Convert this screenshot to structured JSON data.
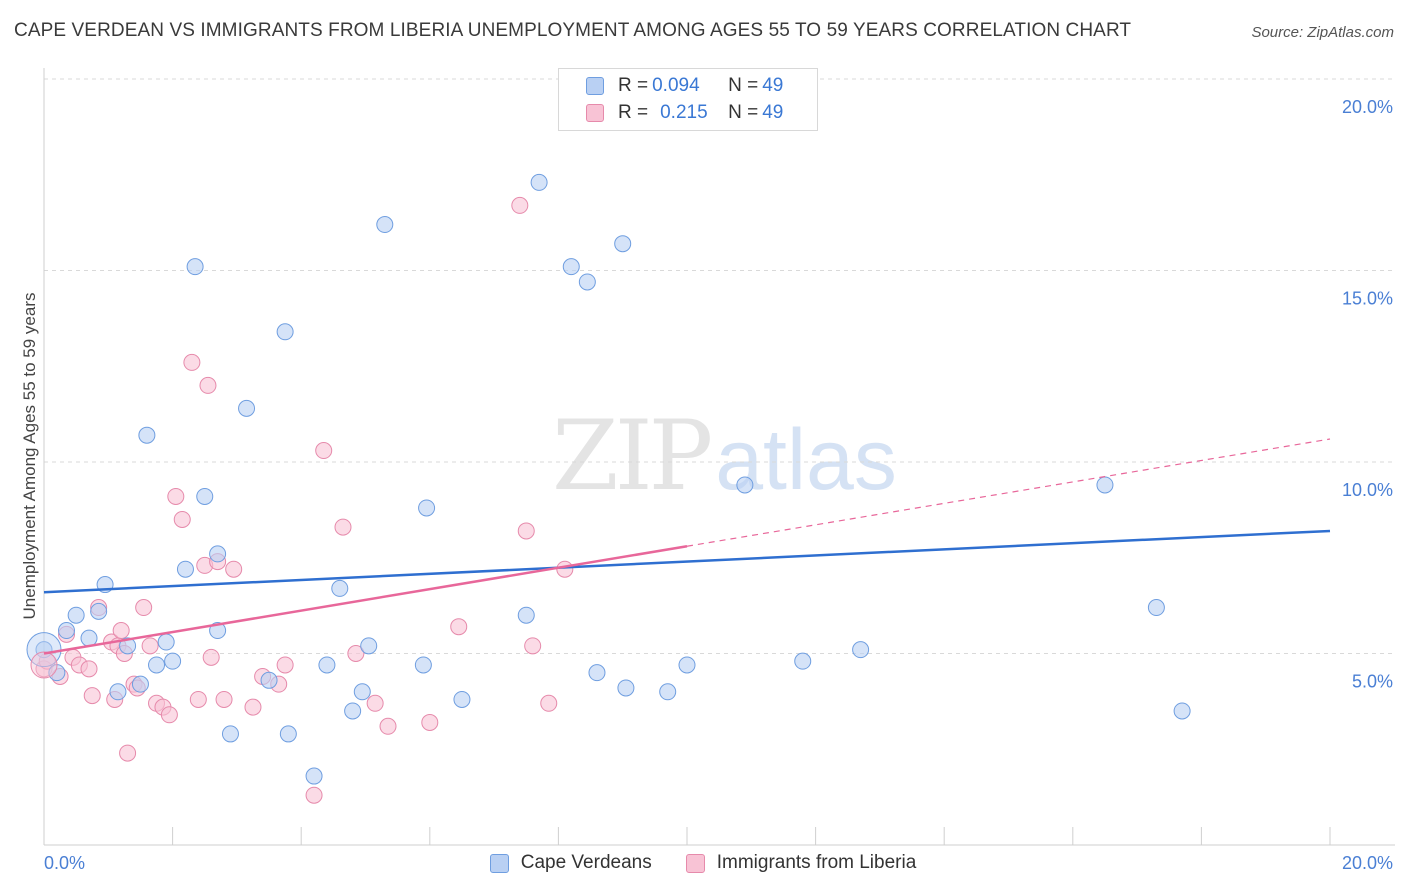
{
  "header": {
    "title": "CAPE VERDEAN VS IMMIGRANTS FROM LIBERIA UNEMPLOYMENT AMONG AGES 55 TO 59 YEARS CORRELATION CHART",
    "source": "Source: ZipAtlas.com"
  },
  "watermark": {
    "zip": "ZIP",
    "atlas": "atlas"
  },
  "legend_top": {
    "rows": [
      {
        "r_label": "R = ",
        "r_value": "0.094",
        "n_label": "N = ",
        "n_value": "49"
      },
      {
        "r_label": "R = ",
        "r_value": "0.215",
        "n_label": "N = ",
        "n_value": "49"
      }
    ]
  },
  "legend_bottom": {
    "items": [
      {
        "label": "Cape Verdeans"
      },
      {
        "label": "Immigrants from Liberia"
      }
    ]
  },
  "colors": {
    "blue_fill": "#b9d0f3",
    "blue_stroke": "#6f9ee0",
    "blue_line": "#2f6fd0",
    "pink_fill": "#f8c3d5",
    "pink_stroke": "#e68aab",
    "pink_line": "#e8679a",
    "grid": "#d9d9d9",
    "tick_label": "#4a7fd4"
  },
  "chart_data": {
    "type": "scatter",
    "title": "CAPE VERDEAN VS IMMIGRANTS FROM LIBERIA UNEMPLOYMENT AMONG AGES 55 TO 59 YEARS CORRELATION CHART",
    "xlabel": "",
    "ylabel": "Unemployment Among Ages 55 to 59 years",
    "xlim": [
      0,
      20
    ],
    "ylim": [
      0,
      20
    ],
    "x_tick_labels": [
      "0.0%",
      "20.0%"
    ],
    "y_ticks": [
      5,
      10,
      15,
      20
    ],
    "y_tick_labels": [
      "5.0%",
      "10.0%",
      "15.0%",
      "20.0%"
    ],
    "grid": true,
    "legend_position": "top-center",
    "series": [
      {
        "name": "Cape Verdeans",
        "r": 0.094,
        "n": 49,
        "trend": {
          "x": [
            0,
            20
          ],
          "y": [
            6.6,
            8.2
          ]
        },
        "points": [
          [
            0.0,
            5.1
          ],
          [
            0.2,
            4.5
          ],
          [
            0.35,
            5.6
          ],
          [
            0.5,
            6.0
          ],
          [
            0.7,
            5.4
          ],
          [
            0.85,
            6.1
          ],
          [
            0.95,
            6.8
          ],
          [
            1.15,
            4.0
          ],
          [
            1.3,
            5.2
          ],
          [
            1.5,
            4.2
          ],
          [
            1.6,
            10.7
          ],
          [
            1.75,
            4.7
          ],
          [
            1.9,
            5.3
          ],
          [
            2.0,
            4.8
          ],
          [
            2.2,
            7.2
          ],
          [
            2.35,
            15.1
          ],
          [
            2.5,
            9.1
          ],
          [
            2.7,
            7.6
          ],
          [
            2.7,
            5.6
          ],
          [
            2.9,
            2.9
          ],
          [
            3.15,
            11.4
          ],
          [
            3.5,
            4.3
          ],
          [
            3.75,
            13.4
          ],
          [
            3.8,
            2.9
          ],
          [
            4.2,
            1.8
          ],
          [
            4.4,
            4.7
          ],
          [
            4.6,
            6.7
          ],
          [
            4.8,
            3.5
          ],
          [
            4.95,
            4.0
          ],
          [
            5.05,
            5.2
          ],
          [
            5.3,
            16.2
          ],
          [
            5.9,
            4.7
          ],
          [
            5.95,
            8.8
          ],
          [
            6.5,
            3.8
          ],
          [
            7.5,
            6.0
          ],
          [
            7.7,
            17.3
          ],
          [
            8.2,
            15.1
          ],
          [
            8.45,
            14.7
          ],
          [
            8.6,
            4.5
          ],
          [
            9.0,
            15.7
          ],
          [
            9.05,
            4.1
          ],
          [
            9.7,
            4.0
          ],
          [
            10.0,
            4.7
          ],
          [
            10.9,
            9.4
          ],
          [
            11.8,
            4.8
          ],
          [
            12.7,
            5.1
          ],
          [
            16.5,
            9.4
          ],
          [
            17.3,
            6.2
          ],
          [
            17.7,
            3.5
          ]
        ]
      },
      {
        "name": "Immigrants from Liberia",
        "r": 0.215,
        "n": 49,
        "trend": {
          "x": [
            0,
            10
          ],
          "y": [
            5.0,
            7.8
          ]
        },
        "trend_extension": {
          "x": [
            10,
            20
          ],
          "y": [
            7.8,
            10.6
          ]
        },
        "points": [
          [
            0.0,
            4.6
          ],
          [
            0.05,
            4.8
          ],
          [
            0.25,
            4.4
          ],
          [
            0.35,
            5.5
          ],
          [
            0.45,
            4.9
          ],
          [
            0.55,
            4.7
          ],
          [
            0.7,
            4.6
          ],
          [
            0.75,
            3.9
          ],
          [
            0.85,
            6.2
          ],
          [
            1.05,
            5.3
          ],
          [
            1.1,
            3.8
          ],
          [
            1.15,
            5.2
          ],
          [
            1.2,
            5.6
          ],
          [
            1.25,
            5.0
          ],
          [
            1.3,
            2.4
          ],
          [
            1.4,
            4.2
          ],
          [
            1.45,
            4.1
          ],
          [
            1.55,
            6.2
          ],
          [
            1.65,
            5.2
          ],
          [
            1.75,
            3.7
          ],
          [
            1.85,
            3.6
          ],
          [
            1.95,
            3.4
          ],
          [
            2.05,
            9.1
          ],
          [
            2.15,
            8.5
          ],
          [
            2.3,
            12.6
          ],
          [
            2.4,
            3.8
          ],
          [
            2.5,
            7.3
          ],
          [
            2.55,
            12.0
          ],
          [
            2.6,
            4.9
          ],
          [
            2.7,
            7.4
          ],
          [
            2.8,
            3.8
          ],
          [
            2.95,
            7.2
          ],
          [
            3.25,
            3.6
          ],
          [
            3.4,
            4.4
          ],
          [
            3.65,
            4.2
          ],
          [
            3.75,
            4.7
          ],
          [
            4.2,
            1.3
          ],
          [
            4.35,
            10.3
          ],
          [
            4.65,
            8.3
          ],
          [
            4.85,
            5.0
          ],
          [
            5.15,
            3.7
          ],
          [
            5.35,
            3.1
          ],
          [
            6.0,
            3.2
          ],
          [
            6.45,
            5.7
          ],
          [
            7.4,
            16.7
          ],
          [
            7.5,
            8.2
          ],
          [
            7.6,
            5.2
          ],
          [
            7.85,
            3.7
          ],
          [
            8.1,
            7.2
          ]
        ]
      }
    ]
  }
}
